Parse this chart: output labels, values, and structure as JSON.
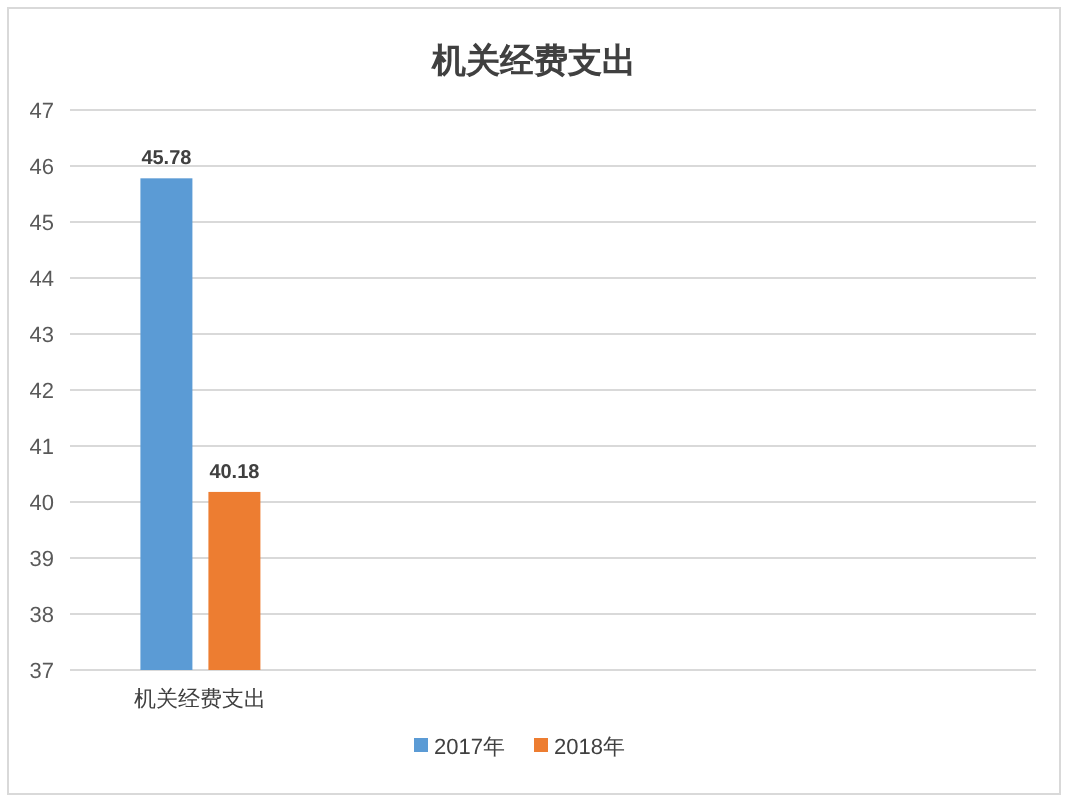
{
  "chart_data": {
    "type": "bar",
    "title": "机关经费支出",
    "categories": [
      "机关经费支出"
    ],
    "series": [
      {
        "name": "2017年",
        "color": "#5b9bd5",
        "values": [
          45.78
        ]
      },
      {
        "name": "2018年",
        "color": "#ed7d31",
        "values": [
          40.18
        ]
      }
    ],
    "ylim": [
      37,
      47
    ],
    "yticks": [
      37,
      38,
      39,
      40,
      41,
      42,
      43,
      44,
      45,
      46,
      47
    ],
    "grid": "y",
    "legend": "bottom",
    "data_labels": true
  }
}
